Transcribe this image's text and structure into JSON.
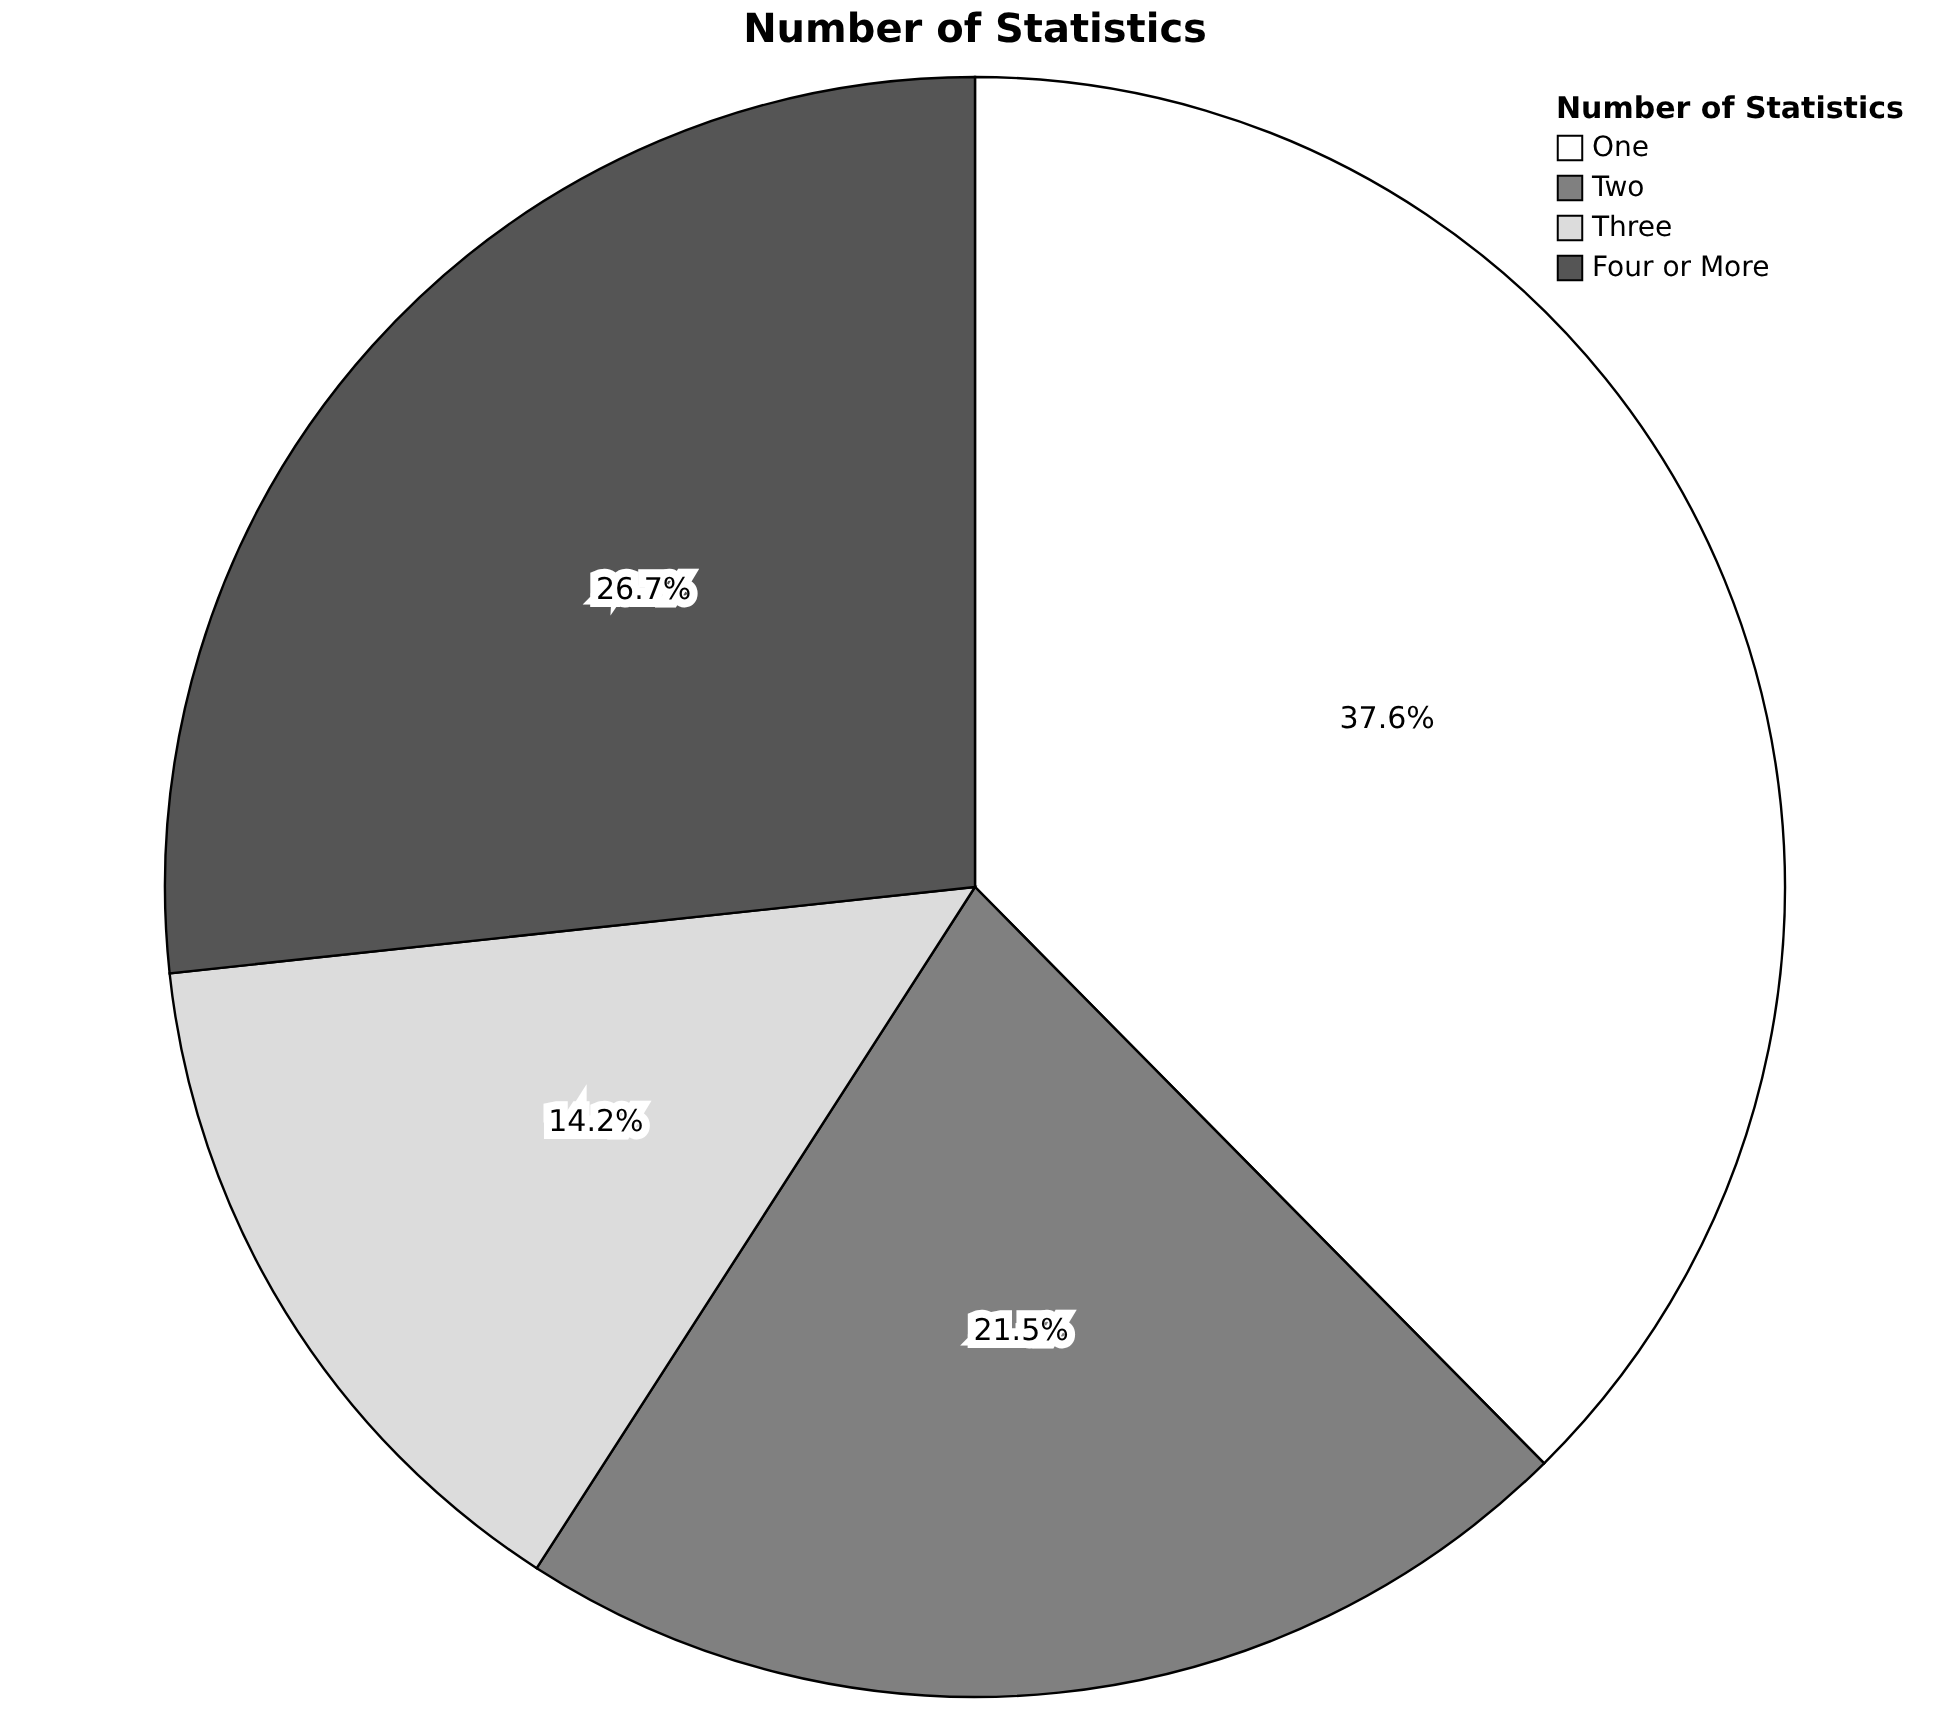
{
  "chart_data": {
    "type": "pie",
    "title": "Number of Statistics",
    "legend_title": "Number of Statistics",
    "legend": "top right",
    "categories": [
      "One",
      "Two",
      "Three",
      "Four or More"
    ],
    "values": [
      37.6,
      21.5,
      14.2,
      26.7
    ],
    "colors": [
      "#ffffff",
      "#808080",
      "#dcdcdc",
      "#555555"
    ],
    "value_labels": [
      "37.6%",
      "21.5%",
      "14.2%",
      "26.7%"
    ]
  }
}
